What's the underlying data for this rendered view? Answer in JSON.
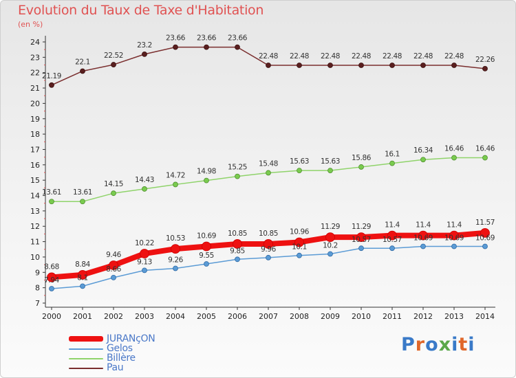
{
  "header": {
    "title": "Evolution du Taux de Taxe d'Habitation",
    "subtitle": "(en %)"
  },
  "logo": {
    "text": "Proxiti",
    "colors": [
      "#3a7ac8",
      "#e0672a",
      "#3a7ac8",
      "#5aa84a",
      "#3a7ac8",
      "#e0672a",
      "#3a7ac8"
    ]
  },
  "chart_data": {
    "type": "line",
    "x": [
      2000,
      2001,
      2002,
      2003,
      2004,
      2005,
      2006,
      2007,
      2008,
      2009,
      2010,
      2011,
      2012,
      2013,
      2014
    ],
    "ylim": [
      7,
      24
    ],
    "yticks": [
      7,
      8,
      9,
      10,
      11,
      12,
      13,
      14,
      15,
      16,
      17,
      18,
      19,
      20,
      21,
      22,
      23,
      24
    ],
    "grid": false,
    "legend_position": "bottom-left",
    "series": [
      {
        "name": "Pau",
        "color": "#7a2e2e",
        "values": [
          21.19,
          22.1,
          22.52,
          23.2,
          23.66,
          23.66,
          23.66,
          22.48,
          22.48,
          22.48,
          22.48,
          22.48,
          22.48,
          22.48,
          22.26
        ],
        "labels": [
          "21.19",
          "22.1",
          "22.52",
          "23.2",
          "23.66",
          "23.66",
          "23.66",
          "22.48",
          "22.48",
          "22.48",
          "22.48",
          "22.48",
          "22.48",
          "22.48",
          "22.26"
        ]
      },
      {
        "name": "Billère",
        "color": "#8fd36a",
        "values": [
          13.61,
          13.61,
          14.15,
          14.43,
          14.72,
          14.98,
          15.25,
          15.48,
          15.63,
          15.63,
          15.86,
          16.1,
          16.34,
          16.46,
          16.46
        ],
        "labels": [
          "13.61",
          "13.61",
          "14.15",
          "14.43",
          "14.72",
          "14.98",
          "15.25",
          "15.48",
          "15.63",
          "15.63",
          "15.86",
          "16.1",
          "16.34",
          "16.46",
          "16.46"
        ]
      },
      {
        "name": "Gelos",
        "color": "#5b9bd5",
        "values": [
          7.94,
          8.1,
          8.66,
          9.13,
          9.26,
          9.55,
          9.85,
          9.96,
          10.1,
          10.2,
          10.57,
          10.57,
          10.69,
          10.69,
          10.69
        ],
        "labels": [
          "7.94",
          "8.1",
          "8.66",
          "9.13",
          "9.26",
          "9.55",
          "9.85",
          "9.96",
          "10.1",
          "10.2",
          "10.57",
          "10.57",
          "10.69",
          "10.69",
          "10.69"
        ]
      },
      {
        "name": "JURANçON",
        "color": "#ee1111",
        "values": [
          8.68,
          8.84,
          9.46,
          10.22,
          10.53,
          10.69,
          10.85,
          10.85,
          10.96,
          11.29,
          11.29,
          11.4,
          11.4,
          11.4,
          11.57
        ],
        "labels": [
          "8.68",
          "8.84",
          "9.46",
          "10.22",
          "10.53",
          "10.69",
          "10.85",
          "10.85",
          "10.96",
          "11.29",
          "11.29",
          "11.4",
          "11.4",
          "11.4",
          "11.57"
        ]
      }
    ]
  }
}
